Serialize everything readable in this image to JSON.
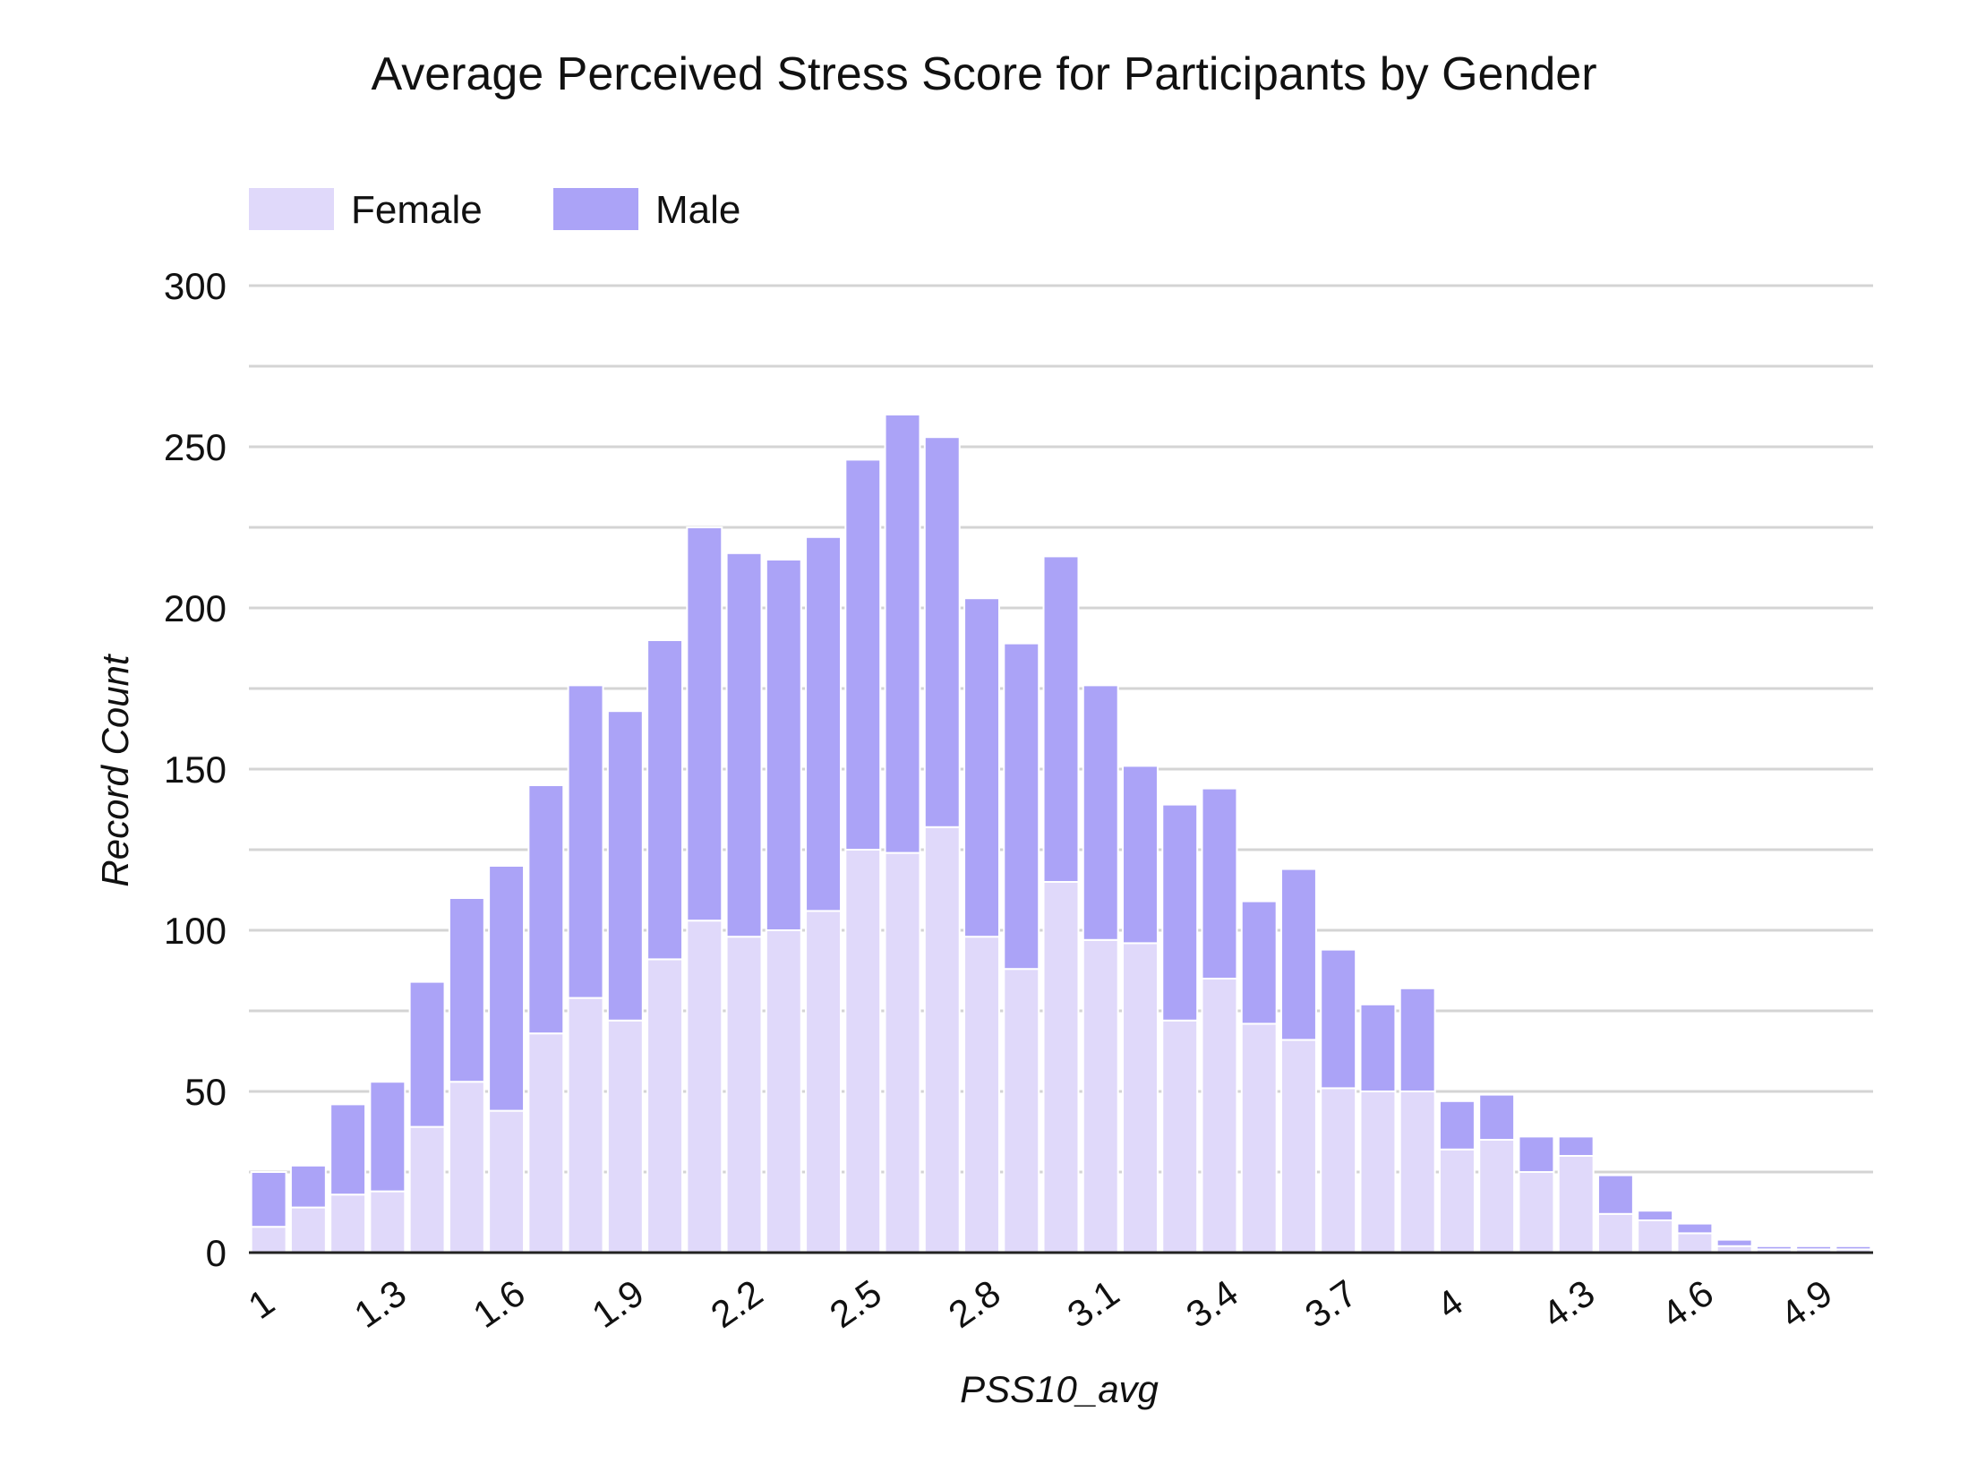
{
  "chart_data": {
    "type": "bar",
    "stacked": true,
    "title": "Average Perceived Stress Score for Participants by Gender",
    "xlabel": "PSS10_avg",
    "ylabel": "Record Count",
    "ylim": [
      0,
      300
    ],
    "y_ticks": [
      0,
      50,
      100,
      150,
      200,
      250,
      300
    ],
    "grid": true,
    "legend_position": "top-left",
    "x_tick_labels": [
      "1",
      "1.3",
      "1.6",
      "1.9",
      "2.2",
      "2.5",
      "2.8",
      "3.1",
      "3.4",
      "3.7",
      "4",
      "4.3",
      "4.6",
      "4.9"
    ],
    "categories": [
      "1",
      "1.1",
      "1.2",
      "1.3",
      "1.4",
      "1.5",
      "1.6",
      "1.7",
      "1.8",
      "1.9",
      "2",
      "2.1",
      "2.2",
      "2.3",
      "2.4",
      "2.5",
      "2.6",
      "2.7",
      "2.8",
      "2.9",
      "3",
      "3.1",
      "3.2",
      "3.3",
      "3.4",
      "3.5",
      "3.6",
      "3.7",
      "3.8",
      "3.9",
      "4",
      "4.1",
      "4.2",
      "4.3",
      "4.4",
      "4.5",
      "4.6",
      "4.7",
      "4.8",
      "4.9",
      "5"
    ],
    "series": [
      {
        "name": "Female",
        "color": "#e0d9fa",
        "values": [
          8,
          14,
          18,
          19,
          39,
          53,
          44,
          68,
          79,
          72,
          91,
          103,
          98,
          100,
          106,
          125,
          124,
          132,
          98,
          88,
          115,
          97,
          96,
          72,
          85,
          71,
          66,
          51,
          50,
          50,
          32,
          35,
          25,
          30,
          12,
          10,
          6,
          2,
          1,
          1,
          1
        ]
      },
      {
        "name": "Male",
        "color": "#aba3f7",
        "values": [
          17,
          13,
          28,
          34,
          45,
          57,
          76,
          77,
          97,
          96,
          99,
          122,
          119,
          115,
          116,
          121,
          136,
          121,
          105,
          101,
          101,
          79,
          55,
          67,
          59,
          38,
          53,
          43,
          27,
          32,
          15,
          14,
          11,
          6,
          12,
          3,
          3,
          2,
          1,
          1,
          1
        ]
      }
    ]
  }
}
